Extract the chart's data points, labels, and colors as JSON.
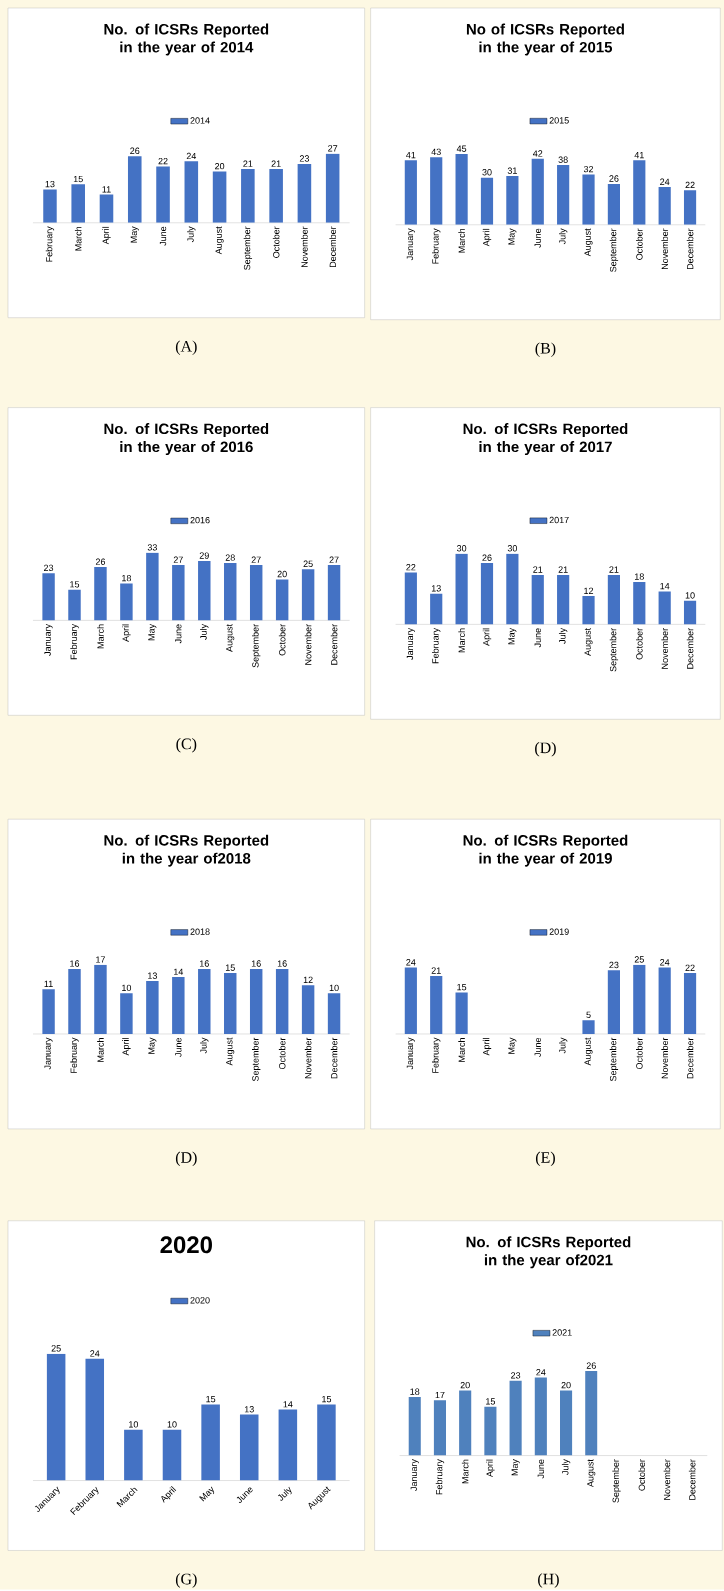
{
  "chart_data": [
    {
      "type": "bar",
      "title": "No. of ICSRs Reported in the year of 2014",
      "categories": [
        "February",
        "March",
        "April",
        "May",
        "June",
        "July",
        "August",
        "September",
        "October",
        "November",
        "December"
      ],
      "series": [
        {
          "name": "2014",
          "color": "#4472c4",
          "values": [
            13,
            15,
            11,
            26,
            22,
            24,
            20,
            21,
            21,
            23,
            27
          ]
        }
      ],
      "data_labels": true,
      "legend": "top",
      "annotations": [
        "(A)"
      ]
    },
    {
      "type": "bar",
      "title": "No of ICSRs Reported in the year of 2015",
      "categories": [
        "January",
        "February",
        "March",
        "April",
        "May",
        "June",
        "July",
        "August",
        "September",
        "October",
        "November",
        "December"
      ],
      "series": [
        {
          "name": "2015",
          "color": "#4472c4",
          "values": [
            41,
            43,
            45,
            30,
            31,
            42,
            38,
            32,
            26,
            41,
            24,
            22
          ]
        }
      ],
      "data_labels": true,
      "legend": "top",
      "annotations": [
        "(B)"
      ]
    },
    {
      "type": "bar",
      "title": "No. of ICSRs Reported in the year of 2016",
      "categories": [
        "January",
        "February",
        "March",
        "April",
        "May",
        "June",
        "July",
        "August",
        "September",
        "October",
        "November",
        "December"
      ],
      "series": [
        {
          "name": "2016",
          "color": "#4472c4",
          "values": [
            23,
            15,
            26,
            18,
            33,
            27,
            29,
            28,
            27,
            20,
            25,
            27
          ]
        }
      ],
      "data_labels": true,
      "legend": "top",
      "annotations": [
        "(C)"
      ]
    },
    {
      "type": "bar",
      "title": "No. of ICSRs Reported in the year of 2017",
      "categories": [
        "January",
        "February",
        "March",
        "April",
        "May",
        "June",
        "July",
        "August",
        "September",
        "October",
        "November",
        "December"
      ],
      "series": [
        {
          "name": "2017",
          "color": "#4472c4",
          "values": [
            22,
            13,
            30,
            26,
            30,
            21,
            21,
            12,
            21,
            18,
            14,
            10
          ]
        }
      ],
      "data_labels": true,
      "legend": "top",
      "annotations": [
        "(D)"
      ]
    },
    {
      "type": "bar",
      "title": "No. of ICSRs Reported in the year of2018",
      "categories": [
        "January",
        "February",
        "March",
        "April",
        "May",
        "June",
        "July",
        "August",
        "September",
        "October",
        "November",
        "December"
      ],
      "series": [
        {
          "name": "2018",
          "color": "#4472c4",
          "values": [
            11,
            16,
            17,
            10,
            13,
            14,
            16,
            15,
            16,
            16,
            12,
            10
          ]
        }
      ],
      "data_labels": true,
      "legend": "top",
      "annotations": [
        "(D)"
      ]
    },
    {
      "type": "bar",
      "title": "No. of ICSRs Reported in the year of 2019",
      "categories": [
        "January",
        "February",
        "March",
        "April",
        "May",
        "June",
        "July",
        "August",
        "September",
        "October",
        "November",
        "December"
      ],
      "series": [
        {
          "name": "2019",
          "color": "#4472c4",
          "values": [
            24,
            21,
            15,
            null,
            null,
            null,
            null,
            5,
            23,
            25,
            24,
            22
          ]
        }
      ],
      "data_labels": true,
      "legend": "top",
      "annotations": [
        "(E)"
      ]
    },
    {
      "type": "bar",
      "title": "2020",
      "categories": [
        "January",
        "February",
        "March",
        "April",
        "May",
        "June",
        "July",
        "August"
      ],
      "series": [
        {
          "name": "2020",
          "color": "#4472c4",
          "values": [
            25,
            24,
            10,
            10,
            15,
            13,
            14,
            15
          ]
        }
      ],
      "data_labels": true,
      "legend": "top",
      "annotations": [
        "(G)"
      ]
    },
    {
      "type": "bar",
      "title": "No. of ICSRs Reported in the year of2021",
      "categories": [
        "January",
        "February",
        "March",
        "April",
        "May",
        "June",
        "July",
        "August",
        "September",
        "October",
        "November",
        "December"
      ],
      "series": [
        {
          "name": "2021",
          "color": "#4f81bd",
          "values": [
            18,
            17,
            20,
            15,
            23,
            24,
            20,
            26,
            null,
            null,
            null,
            null
          ]
        }
      ],
      "data_labels": true,
      "legend": "top",
      "annotations": [
        "(H)"
      ]
    }
  ]
}
